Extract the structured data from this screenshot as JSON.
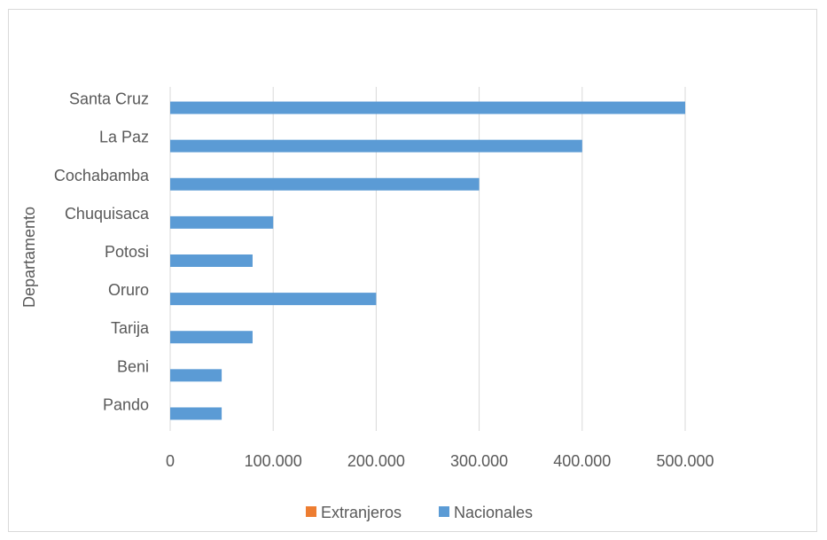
{
  "chart_data": {
    "type": "bar",
    "orientation": "horizontal",
    "title": "",
    "xlabel": "",
    "ylabel": "Departamento",
    "categories": [
      "Santa Cruz",
      "La Paz",
      "Cochabamba",
      "Chuquisaca",
      "Potosi",
      "Oruro",
      "Tarija",
      "Beni",
      "Pando"
    ],
    "series": [
      {
        "name": "Extranjeros",
        "color": "#ed7d31",
        "values": [
          0,
          0,
          0,
          0,
          0,
          0,
          0,
          0,
          0
        ]
      },
      {
        "name": "Nacionales",
        "color": "#5b9bd5",
        "values": [
          500000,
          400000,
          300000,
          100000,
          80000,
          200000,
          80000,
          50000,
          50000
        ]
      }
    ],
    "xlim": [
      0,
      500000
    ],
    "xticks": [
      "0",
      "100.000",
      "200.000",
      "300.000",
      "400.000",
      "500.000"
    ],
    "grid": true,
    "legend_position": "bottom"
  }
}
